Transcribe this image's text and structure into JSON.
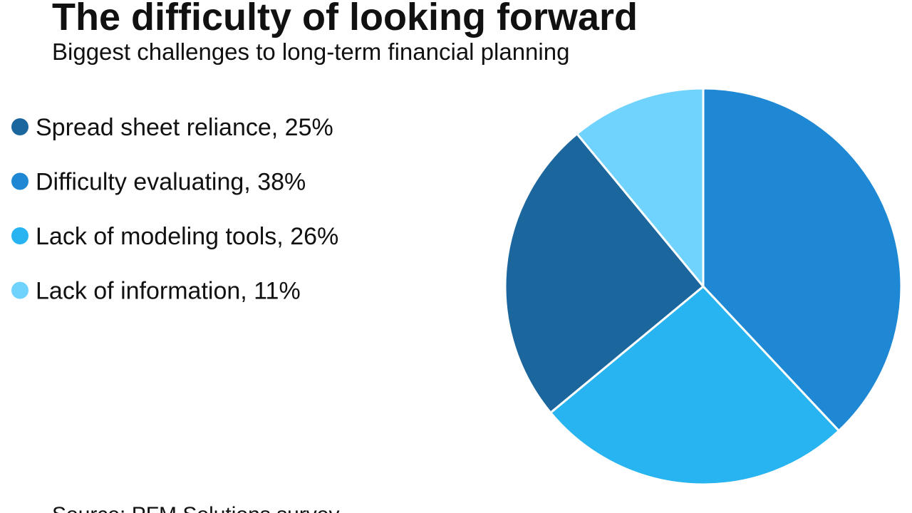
{
  "chart_data": {
    "type": "pie",
    "title": "The difficulty of looking forward",
    "subtitle": "Biggest challenges to long-term financial planning",
    "source": "Source: PFM Solutions survey",
    "categories": [
      "Spread sheet reliance, 25%",
      "Difficulty evaluating, 38%",
      "Lack of modeling tools, 26%",
      "Lack of information, 11%"
    ],
    "values": [
      25,
      38,
      26,
      11
    ],
    "colors": [
      "#1c669e",
      "#1e88d4",
      "#27b4f0",
      "#6fd3fd"
    ],
    "legend": "left"
  }
}
